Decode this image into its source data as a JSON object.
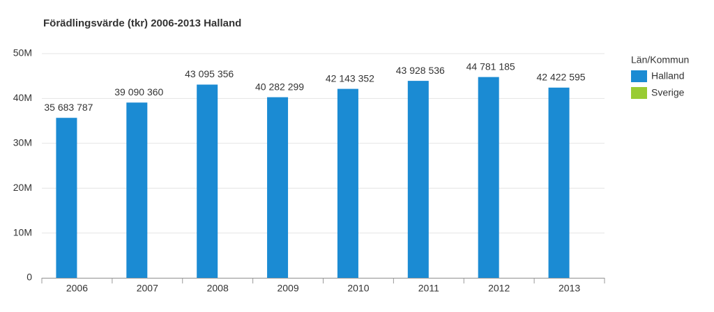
{
  "chart_data": {
    "type": "bar",
    "title": "Förädlingsvärde (tkr) 2006-2013 Halland",
    "categories": [
      "2006",
      "2007",
      "2008",
      "2009",
      "2010",
      "2011",
      "2012",
      "2013"
    ],
    "legend_title": "Län/Kommun",
    "series": [
      {
        "name": "Halland",
        "color": "#1b8bd3",
        "values": [
          35683787,
          39090360,
          43095356,
          40282299,
          42143352,
          43928536,
          44781185,
          42422595
        ],
        "value_labels": [
          "35 683 787",
          "39 090 360",
          "43 095 356",
          "40 282 299",
          "42 143 352",
          "43 928 536",
          "44 781 185",
          "42 422 595"
        ]
      },
      {
        "name": "Sverige",
        "color": "#99cc33",
        "values": [
          null,
          null,
          null,
          null,
          null,
          null,
          null,
          null
        ]
      }
    ],
    "ylim": [
      0,
      50000000
    ],
    "yticks": [
      0,
      {
        "value": 10000000,
        "label": "10M"
      },
      {
        "value": 20000000,
        "label": "20M"
      },
      {
        "value": 30000000,
        "label": "30M"
      },
      {
        "value": 40000000,
        "label": "40M"
      },
      {
        "value": 50000000,
        "label": "50M"
      }
    ],
    "grid": true,
    "legend": "right"
  }
}
